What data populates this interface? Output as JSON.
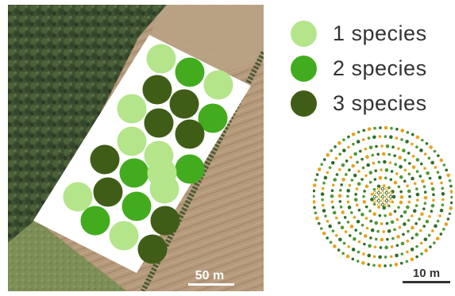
{
  "legend": {
    "items": [
      {
        "label": "1 species",
        "color": "#b4e58a"
      },
      {
        "label": "2 species",
        "color": "#43ac1e"
      },
      {
        "label": "3 species",
        "color": "#3f5d16"
      }
    ]
  },
  "aerial": {
    "scale_label": "50 m",
    "plots": {
      "columns": [
        {
          "rows": [
            "1 species",
            "3 species",
            "1 species",
            "1 species",
            "3 species",
            "1 species"
          ]
        },
        {
          "rows": [
            "1 species",
            "3 species",
            "3 species",
            "1 species",
            "2 species",
            "3 species",
            "2 species"
          ]
        },
        {
          "rows": [
            "2 species",
            "3 species",
            "3 species",
            "1 species",
            "2 species",
            "1 species",
            "3 species",
            "1 species"
          ]
        },
        {
          "rows": [
            "1 species",
            "2 species",
            "3 species",
            "2 species",
            "1 species",
            "2 species",
            "3 species",
            "3 species"
          ]
        }
      ]
    }
  },
  "design": {
    "scale_label": "10 m",
    "ring_colors": [
      "#2e6e2a",
      "#e8a21c",
      "#4e9a35"
    ],
    "center_marker_colors": [
      "#2e6e2a",
      "#e8a21c"
    ]
  }
}
